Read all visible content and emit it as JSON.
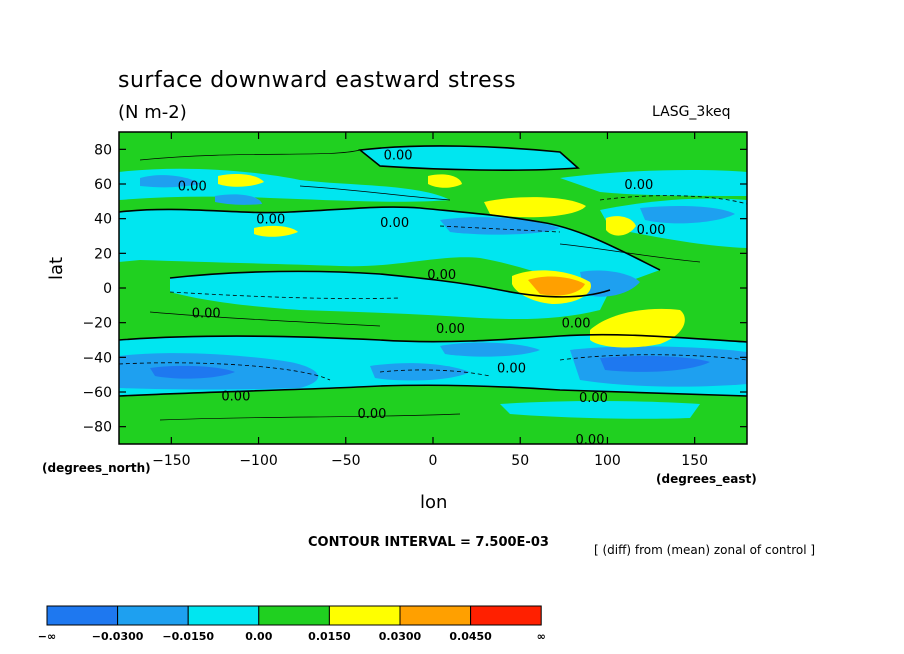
{
  "chart_data": {
    "type": "contour-map",
    "title": "surface downward eastward stress",
    "units": "(N m-2)",
    "model_label": "LASG_3keq",
    "xlabel": "lon",
    "ylabel": "lat",
    "x_units": "(degrees_east)",
    "y_units": "(degrees_north)",
    "xlim": [
      -180,
      180
    ],
    "ylim": [
      -90,
      90
    ],
    "x_ticks": [
      -150,
      -100,
      -50,
      0,
      50,
      100,
      150
    ],
    "x_tick_labels": [
      "−150",
      "−100",
      "−50",
      "0",
      "50",
      "100",
      "150"
    ],
    "y_ticks": [
      80,
      60,
      40,
      20,
      0,
      -20,
      -40,
      -60,
      -80
    ],
    "y_tick_labels": [
      "80",
      "60",
      "40",
      "20",
      "0",
      "−20",
      "−40",
      "−60",
      "−80"
    ],
    "contour_interval_text": "CONTOUR INTERVAL = 7.500E-03",
    "description": "[ (diff) from (mean) zonal of control ]",
    "contour_labels": [
      {
        "text": "0.00",
        "lon": -20,
        "lat": 77
      },
      {
        "text": "0.00",
        "lon": -138,
        "lat": 59
      },
      {
        "text": "0.00",
        "lon": -93,
        "lat": 40
      },
      {
        "text": "0.00",
        "lon": -22,
        "lat": 38
      },
      {
        "text": "0.00",
        "lon": 118,
        "lat": 60
      },
      {
        "text": "0.00",
        "lon": 125,
        "lat": 34
      },
      {
        "text": "0.00",
        "lon": 5,
        "lat": 8
      },
      {
        "text": "0.00",
        "lon": -130,
        "lat": -14
      },
      {
        "text": "0.00",
        "lon": 10,
        "lat": -23
      },
      {
        "text": "0.00",
        "lon": 82,
        "lat": -20
      },
      {
        "text": "0.00",
        "lon": 45,
        "lat": -46
      },
      {
        "text": "0.00",
        "lon": -113,
        "lat": -62
      },
      {
        "text": "0.00",
        "lon": -35,
        "lat": -72
      },
      {
        "text": "0.00",
        "lon": 92,
        "lat": -63
      },
      {
        "text": "0.00",
        "lon": 90,
        "lat": -87
      }
    ],
    "colorbar": {
      "boundary_labels": [
        "−∞",
        "−0.0300",
        "−0.0150",
        "0.00",
        "0.0150",
        "0.0300",
        "0.0450",
        "∞"
      ],
      "colors": [
        "#1e78f0",
        "#1ea0f0",
        "#00e6f0",
        "#20d020",
        "#ffff00",
        "#ffa000",
        "#ff2000"
      ]
    }
  }
}
